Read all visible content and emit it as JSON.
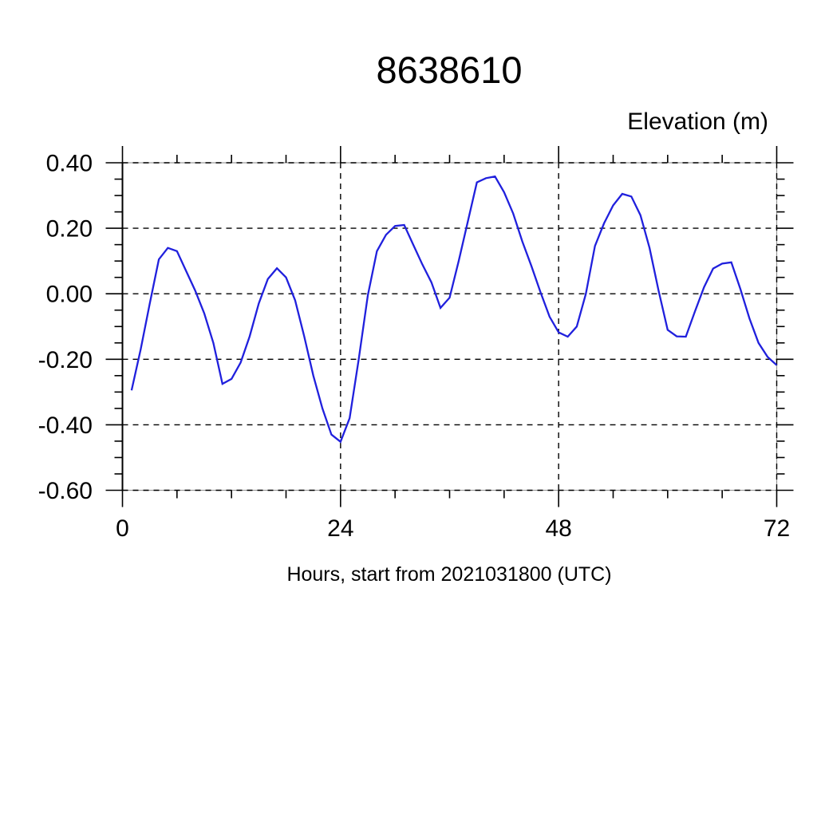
{
  "figure": {
    "title": "8638610",
    "unit_label": "Elevation (m)",
    "xlabel": "Hours, start from 2021031800 (UTC)"
  },
  "chart_data": {
    "type": "line",
    "title": "8638610",
    "ylabel": "Elevation (m)",
    "xlabel": "Hours, start from 2021031800 (UTC)",
    "xlim": [
      0,
      72
    ],
    "ylim": [
      -0.6,
      0.4
    ],
    "x_major_ticks": [
      0,
      24,
      48,
      72
    ],
    "x_tick_labels": [
      "0",
      "24",
      "48",
      "72"
    ],
    "x_minor_step": 6,
    "y_major_ticks": [
      0.4,
      0.2,
      0.0,
      -0.2,
      -0.4,
      -0.6
    ],
    "y_tick_labels": [
      "0.40",
      "0.20",
      "0.00",
      "-0.20",
      "-0.40",
      "-0.60"
    ],
    "y_minor_step": 0.05,
    "grid": "dashed",
    "legend": "none",
    "line_color": "#2020dd",
    "series": [
      {
        "name": "elevation",
        "x": [
          1,
          2,
          3,
          4,
          5,
          6,
          7,
          8,
          9,
          10,
          11,
          12,
          13,
          14,
          15,
          16,
          17,
          18,
          19,
          20,
          21,
          22,
          23,
          24,
          25,
          26,
          27,
          28,
          29,
          30,
          31,
          32,
          33,
          34,
          35,
          36,
          37,
          38,
          39,
          40,
          41,
          42,
          43,
          44,
          45,
          46,
          47,
          48,
          49,
          50,
          51,
          52,
          53,
          54,
          55,
          56,
          57,
          58,
          59,
          60,
          61,
          62,
          63,
          64,
          65,
          66,
          67,
          68,
          69,
          70,
          71,
          72
        ],
        "y": [
          -0.295,
          -0.17,
          -0.03,
          0.105,
          0.14,
          0.13,
          0.07,
          0.01,
          -0.06,
          -0.15,
          -0.275,
          -0.26,
          -0.21,
          -0.13,
          -0.03,
          0.045,
          0.078,
          0.05,
          -0.02,
          -0.13,
          -0.25,
          -0.35,
          -0.43,
          -0.452,
          -0.38,
          -0.2,
          -0.005,
          0.13,
          0.18,
          0.207,
          0.21,
          0.15,
          0.09,
          0.035,
          -0.043,
          -0.012,
          0.1,
          0.22,
          0.34,
          0.353,
          0.358,
          0.31,
          0.245,
          0.16,
          0.085,
          0.005,
          -0.07,
          -0.118,
          -0.131,
          -0.1,
          0.0,
          0.146,
          0.215,
          0.27,
          0.305,
          0.297,
          0.24,
          0.14,
          0.01,
          -0.11,
          -0.13,
          -0.131,
          -0.054,
          0.02,
          0.077,
          0.092,
          0.096,
          0.015,
          -0.075,
          -0.15,
          -0.193,
          -0.218
        ]
      }
    ]
  }
}
